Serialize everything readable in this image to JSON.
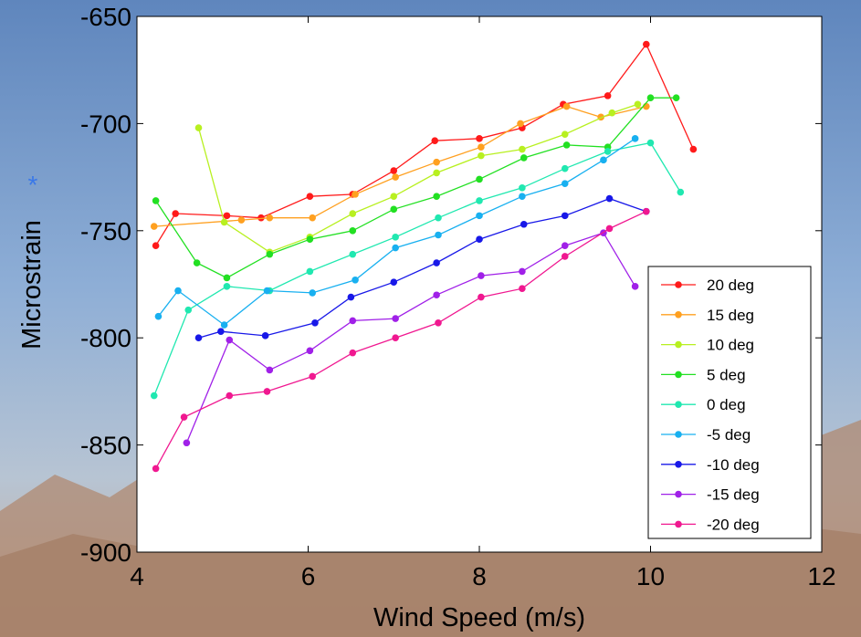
{
  "chart_data": {
    "type": "line",
    "xlabel": "Wind Speed (m/s)",
    "ylabel": "Microstrain",
    "ylabel_marker": "*",
    "xlim": [
      4,
      12
    ],
    "ylim": [
      -900,
      -650
    ],
    "xticks": [
      4,
      6,
      8,
      10,
      12
    ],
    "yticks": [
      -900,
      -850,
      -800,
      -750,
      -700,
      -650
    ],
    "legend_position": "bottom-right",
    "series": [
      {
        "name": "20 deg",
        "color": "#ff1a1a",
        "x": [
          4.22,
          4.45,
          5.05,
          5.45,
          6.02,
          6.52,
          7.0,
          7.48,
          8.0,
          8.5,
          8.98,
          9.5,
          9.95,
          10.5
        ],
        "y": [
          -757,
          -742,
          -743,
          -744,
          -734,
          -733,
          -722,
          -708,
          -707,
          -702,
          -691,
          -687,
          -663,
          -712
        ]
      },
      {
        "name": "15 deg",
        "color": "#ffa020",
        "x": [
          4.2,
          5.22,
          5.55,
          6.05,
          6.55,
          7.02,
          7.5,
          8.02,
          8.48,
          9.02,
          9.42,
          9.95
        ],
        "y": [
          -748,
          -745,
          -744,
          -744,
          -733,
          -725,
          -718,
          -711,
          -700,
          -692,
          -697,
          -692
        ]
      },
      {
        "name": "10 deg",
        "color": "#b8f020",
        "x": [
          4.72,
          5.02,
          5.55,
          6.02,
          6.52,
          7.0,
          7.5,
          8.02,
          8.5,
          9.0,
          9.55,
          9.85
        ],
        "y": [
          -702,
          -746,
          -760,
          -753,
          -742,
          -734,
          -723,
          -715,
          -712,
          -705,
          -695,
          -691
        ]
      },
      {
        "name": "5 deg",
        "color": "#22e022",
        "x": [
          4.22,
          4.7,
          5.05,
          5.55,
          6.02,
          6.52,
          7.0,
          7.5,
          8.0,
          8.52,
          9.02,
          9.5,
          10.0,
          10.3
        ],
        "y": [
          -736,
          -765,
          -772,
          -761,
          -754,
          -750,
          -740,
          -734,
          -726,
          -716,
          -710,
          -711,
          -688,
          -688
        ]
      },
      {
        "name": "0 deg",
        "color": "#20e8b0",
        "x": [
          4.2,
          4.6,
          5.05,
          5.55,
          6.02,
          6.52,
          7.02,
          7.52,
          8.0,
          8.5,
          9.0,
          9.5,
          10.0,
          10.35
        ],
        "y": [
          -827,
          -787,
          -776,
          -778,
          -769,
          -761,
          -753,
          -744,
          -736,
          -730,
          -721,
          -713,
          -709,
          -732
        ]
      },
      {
        "name": "-5 deg",
        "color": "#18b0f0",
        "x": [
          4.25,
          4.48,
          5.02,
          5.52,
          6.05,
          6.55,
          7.02,
          7.52,
          8.0,
          8.5,
          9.0,
          9.45,
          9.82
        ],
        "y": [
          -790,
          -778,
          -794,
          -778,
          -779,
          -773,
          -758,
          -752,
          -743,
          -734,
          -728,
          -717,
          -707
        ]
      },
      {
        "name": "-10 deg",
        "color": "#1818e8",
        "x": [
          4.72,
          4.98,
          5.5,
          6.08,
          6.5,
          7.0,
          7.5,
          8.0,
          8.52,
          9.0,
          9.52,
          9.95
        ],
        "y": [
          -800,
          -797,
          -799,
          -793,
          -781,
          -774,
          -765,
          -754,
          -747,
          -743,
          -735,
          -741
        ]
      },
      {
        "name": "-15 deg",
        "color": "#a020e8",
        "x": [
          4.58,
          5.08,
          5.55,
          6.02,
          6.52,
          7.02,
          7.5,
          8.02,
          8.5,
          9.0,
          9.45,
          9.82
        ],
        "y": [
          -849,
          -801,
          -815,
          -806,
          -792,
          -791,
          -780,
          -771,
          -769,
          -757,
          -751,
          -776
        ]
      },
      {
        "name": "-20 deg",
        "color": "#f01890",
        "x": [
          4.22,
          4.55,
          5.08,
          5.52,
          6.05,
          6.52,
          7.02,
          7.52,
          8.02,
          8.5,
          9.0,
          9.52,
          9.95
        ],
        "y": [
          -861,
          -837,
          -827,
          -825,
          -818,
          -807,
          -800,
          -793,
          -781,
          -777,
          -762,
          -749,
          -741
        ]
      }
    ]
  }
}
